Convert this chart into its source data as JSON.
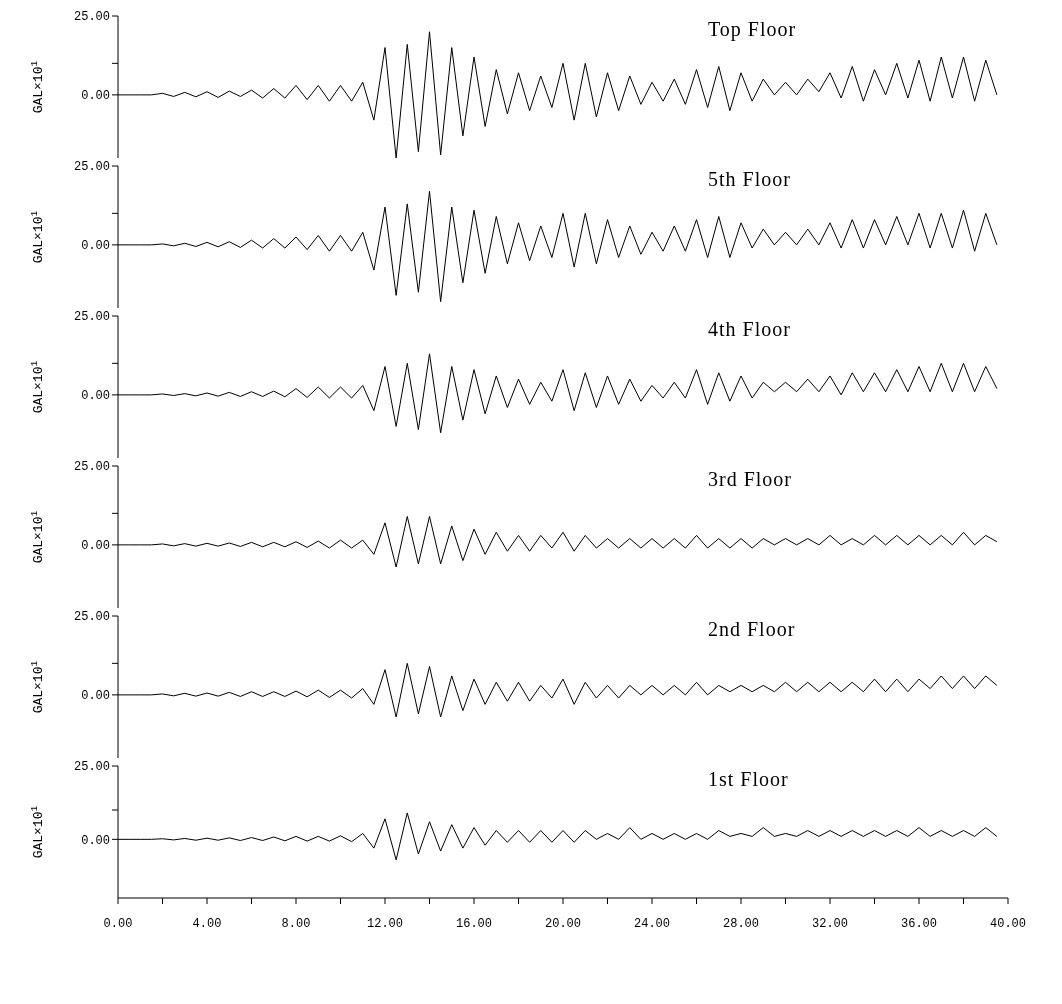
{
  "chart_data": [
    {
      "type": "line",
      "title": "Top Floor",
      "ylabel": "GAL×10$^{1}$",
      "color": "#000000",
      "marker": "none",
      "line_style": "solid",
      "tick_labels": "y",
      "xlim": [
        0,
        40
      ],
      "ylim": [
        -20,
        25
      ],
      "yticks": [
        {
          "value": 0,
          "label": "0.00"
        },
        {
          "value": 10,
          "label": null
        },
        {
          "value": 25,
          "label": "25.00"
        }
      ],
      "x": [
        0,
        0.5,
        1,
        1.5,
        2,
        2.5,
        3,
        3.5,
        4,
        4.5,
        5,
        5.5,
        6,
        6.5,
        7,
        7.5,
        8,
        8.5,
        9,
        9.5,
        10,
        10.5,
        11,
        11.5,
        12,
        12.5,
        13,
        13.5,
        14,
        14.5,
        15,
        15.5,
        16,
        16.5,
        17,
        17.5,
        18,
        18.5,
        19,
        19.5,
        20,
        20.5,
        21,
        21.5,
        22,
        22.5,
        23,
        23.5,
        24,
        24.5,
        25,
        25.5,
        26,
        26.5,
        27,
        27.5,
        28,
        28.5,
        29,
        29.5,
        30,
        30.5,
        31,
        31.5,
        32,
        32.5,
        33,
        33.5,
        34,
        34.5,
        35,
        35.5,
        36,
        36.5,
        37,
        37.5,
        38,
        38.5,
        39,
        39.5
      ],
      "values": [
        0,
        0,
        0,
        0,
        0.5,
        -0.5,
        0.8,
        -0.6,
        1,
        -0.8,
        1.2,
        -0.5,
        1.5,
        -1,
        2,
        -1,
        3,
        -1.5,
        3,
        -2,
        3,
        -2,
        4,
        -8,
        15,
        -20,
        16,
        -18,
        20,
        -19,
        15,
        -13,
        12,
        -10,
        8,
        -6,
        7,
        -5,
        6,
        -4,
        10,
        -8,
        10,
        -7,
        7,
        -5,
        6,
        -3,
        4,
        -2,
        5,
        -3,
        8,
        -4,
        9,
        -5,
        7,
        -2,
        5,
        0,
        4,
        0,
        5,
        1,
        7,
        -1,
        9,
        -2,
        8,
        0,
        10,
        -1,
        11,
        -2,
        12,
        -1,
        12,
        -2,
        11,
        0
      ]
    },
    {
      "type": "line",
      "title": "5th Floor",
      "ylabel": "GAL×10$^{1}$",
      "color": "#000000",
      "marker": "none",
      "line_style": "solid",
      "tick_labels": "y",
      "xlim": [
        0,
        40
      ],
      "ylim": [
        -20,
        25
      ],
      "yticks": [
        {
          "value": 0,
          "label": "0.00"
        },
        {
          "value": 10,
          "label": null
        },
        {
          "value": 25,
          "label": "25.00"
        }
      ],
      "x": [
        0,
        0.5,
        1,
        1.5,
        2,
        2.5,
        3,
        3.5,
        4,
        4.5,
        5,
        5.5,
        6,
        6.5,
        7,
        7.5,
        8,
        8.5,
        9,
        9.5,
        10,
        10.5,
        11,
        11.5,
        12,
        12.5,
        13,
        13.5,
        14,
        14.5,
        15,
        15.5,
        16,
        16.5,
        17,
        17.5,
        18,
        18.5,
        19,
        19.5,
        20,
        20.5,
        21,
        21.5,
        22,
        22.5,
        23,
        23.5,
        24,
        24.5,
        25,
        25.5,
        26,
        26.5,
        27,
        27.5,
        28,
        28.5,
        29,
        29.5,
        30,
        30.5,
        31,
        31.5,
        32,
        32.5,
        33,
        33.5,
        34,
        34.5,
        35,
        35.5,
        36,
        36.5,
        37,
        37.5,
        38,
        38.5,
        39,
        39.5
      ],
      "values": [
        0,
        0,
        0,
        0,
        0.3,
        -0.3,
        0.5,
        -0.5,
        0.8,
        -0.6,
        1,
        -0.8,
        1.5,
        -1,
        2,
        -1,
        2.5,
        -1.5,
        3,
        -2,
        3,
        -2,
        4,
        -8,
        12,
        -16,
        13,
        -15,
        17,
        -18,
        12,
        -12,
        11,
        -9,
        9,
        -6,
        7,
        -5,
        6,
        -4,
        10,
        -7,
        10,
        -6,
        8,
        -4,
        6,
        -3,
        4,
        -2,
        6,
        -2,
        8,
        -4,
        9,
        -4,
        7,
        -1,
        5,
        0,
        4,
        0,
        5,
        0,
        7,
        -1,
        8,
        -1,
        8,
        0,
        9,
        0,
        10,
        -1,
        10,
        -1,
        11,
        -2,
        10,
        0
      ]
    },
    {
      "type": "line",
      "title": "4th Floor",
      "ylabel": "GAL×10$^{1}$",
      "color": "#000000",
      "marker": "none",
      "line_style": "solid",
      "tick_labels": "y",
      "xlim": [
        0,
        40
      ],
      "ylim": [
        -20,
        25
      ],
      "yticks": [
        {
          "value": 0,
          "label": "0.00"
        },
        {
          "value": 10,
          "label": null
        },
        {
          "value": 25,
          "label": "25.00"
        }
      ],
      "x": [
        0,
        0.5,
        1,
        1.5,
        2,
        2.5,
        3,
        3.5,
        4,
        4.5,
        5,
        5.5,
        6,
        6.5,
        7,
        7.5,
        8,
        8.5,
        9,
        9.5,
        10,
        10.5,
        11,
        11.5,
        12,
        12.5,
        13,
        13.5,
        14,
        14.5,
        15,
        15.5,
        16,
        16.5,
        17,
        17.5,
        18,
        18.5,
        19,
        19.5,
        20,
        20.5,
        21,
        21.5,
        22,
        22.5,
        23,
        23.5,
        24,
        24.5,
        25,
        25.5,
        26,
        26.5,
        27,
        27.5,
        28,
        28.5,
        29,
        29.5,
        30,
        30.5,
        31,
        31.5,
        32,
        32.5,
        33,
        33.5,
        34,
        34.5,
        35,
        35.5,
        36,
        36.5,
        37,
        37.5,
        38,
        38.5,
        39,
        39.5
      ],
      "values": [
        0,
        0,
        0,
        0,
        0.3,
        -0.2,
        0.4,
        -0.3,
        0.6,
        -0.4,
        0.8,
        -0.5,
        1,
        -0.5,
        1.2,
        -0.6,
        2,
        -0.8,
        2.5,
        -1,
        2.5,
        -1,
        3,
        -5,
        9,
        -10,
        10,
        -11,
        13,
        -12,
        9,
        -8,
        8,
        -6,
        6,
        -4,
        5,
        -3,
        4,
        -2,
        8,
        -5,
        7,
        -4,
        6,
        -3,
        5,
        -2,
        3,
        -1,
        4,
        -1,
        8,
        -3,
        7,
        -2,
        6,
        -1,
        4,
        1,
        4,
        1,
        5,
        1,
        6,
        0,
        7,
        1,
        7,
        1,
        8,
        1,
        9,
        1,
        10,
        1,
        10,
        1,
        9,
        2
      ]
    },
    {
      "type": "line",
      "title": "3rd Floor",
      "ylabel": "GAL×10$^{1}$",
      "color": "#000000",
      "marker": "none",
      "line_style": "solid",
      "tick_labels": "y",
      "xlim": [
        0,
        40
      ],
      "ylim": [
        -20,
        25
      ],
      "yticks": [
        {
          "value": 0,
          "label": "0.00"
        },
        {
          "value": 10,
          "label": null
        },
        {
          "value": 25,
          "label": "25.00"
        }
      ],
      "x": [
        0,
        0.5,
        1,
        1.5,
        2,
        2.5,
        3,
        3.5,
        4,
        4.5,
        5,
        5.5,
        6,
        6.5,
        7,
        7.5,
        8,
        8.5,
        9,
        9.5,
        10,
        10.5,
        11,
        11.5,
        12,
        12.5,
        13,
        13.5,
        14,
        14.5,
        15,
        15.5,
        16,
        16.5,
        17,
        17.5,
        18,
        18.5,
        19,
        19.5,
        20,
        20.5,
        21,
        21.5,
        22,
        22.5,
        23,
        23.5,
        24,
        24.5,
        25,
        25.5,
        26,
        26.5,
        27,
        27.5,
        28,
        28.5,
        29,
        29.5,
        30,
        30.5,
        31,
        31.5,
        32,
        32.5,
        33,
        33.5,
        34,
        34.5,
        35,
        35.5,
        36,
        36.5,
        37,
        37.5,
        38,
        38.5,
        39,
        39.5
      ],
      "values": [
        0,
        0,
        0,
        0,
        0.3,
        -0.3,
        0.4,
        -0.4,
        0.5,
        -0.4,
        0.6,
        -0.5,
        0.8,
        -0.6,
        0.8,
        -0.6,
        1,
        -0.8,
        1.2,
        -1,
        1.5,
        -1,
        1.5,
        -3,
        7,
        -7,
        9,
        -6,
        9,
        -6,
        6,
        -5,
        5,
        -3,
        4,
        -2,
        3,
        -2,
        3,
        -1,
        4,
        -2,
        3,
        -1,
        2,
        -1,
        2,
        -1,
        2,
        -1,
        2,
        -1,
        3,
        -1,
        2,
        -1,
        2,
        -1,
        2,
        0,
        2,
        0,
        2,
        0,
        3,
        0,
        2,
        0,
        3,
        0,
        3,
        0,
        3,
        0,
        3,
        0,
        4,
        0,
        3,
        1
      ]
    },
    {
      "type": "line",
      "title": "2nd Floor",
      "ylabel": "GAL×10$^{1}$",
      "color": "#000000",
      "marker": "none",
      "line_style": "solid",
      "tick_labels": "y",
      "xlim": [
        0,
        40
      ],
      "ylim": [
        -20,
        25
      ],
      "yticks": [
        {
          "value": 0,
          "label": "0.00"
        },
        {
          "value": 10,
          "label": null
        },
        {
          "value": 25,
          "label": "25.00"
        }
      ],
      "x": [
        0,
        0.5,
        1,
        1.5,
        2,
        2.5,
        3,
        3.5,
        4,
        4.5,
        5,
        5.5,
        6,
        6.5,
        7,
        7.5,
        8,
        8.5,
        9,
        9.5,
        10,
        10.5,
        11,
        11.5,
        12,
        12.5,
        13,
        13.5,
        14,
        14.5,
        15,
        15.5,
        16,
        16.5,
        17,
        17.5,
        18,
        18.5,
        19,
        19.5,
        20,
        20.5,
        21,
        21.5,
        22,
        22.5,
        23,
        23.5,
        24,
        24.5,
        25,
        25.5,
        26,
        26.5,
        27,
        27.5,
        28,
        28.5,
        29,
        29.5,
        30,
        30.5,
        31,
        31.5,
        32,
        32.5,
        33,
        33.5,
        34,
        34.5,
        35,
        35.5,
        36,
        36.5,
        37,
        37.5,
        38,
        38.5,
        39,
        39.5
      ],
      "values": [
        0,
        0,
        0,
        0,
        0.3,
        -0.3,
        0.5,
        -0.4,
        0.6,
        -0.4,
        0.8,
        -0.5,
        1,
        -0.5,
        1,
        -0.5,
        1.2,
        -0.6,
        1.5,
        -0.8,
        1.5,
        -1,
        2,
        -3,
        8,
        -7,
        10,
        -6,
        9,
        -7,
        6,
        -5,
        5,
        -3,
        4,
        -2,
        4,
        -2,
        3,
        -1,
        5,
        -3,
        4,
        -1,
        3,
        -1,
        3,
        0,
        3,
        0,
        3,
        0,
        4,
        0,
        3,
        1,
        3,
        1,
        3,
        1,
        4,
        1,
        4,
        1,
        4,
        1,
        4,
        1,
        5,
        1,
        5,
        1,
        5,
        2,
        6,
        2,
        6,
        2,
        6,
        3
      ]
    },
    {
      "type": "line",
      "title": "1st Floor",
      "ylabel": "GAL×10$^{1}$",
      "color": "#000000",
      "marker": "none",
      "line_style": "solid",
      "xlim": [
        0,
        40
      ],
      "ylim": [
        -20,
        25
      ],
      "yticks": [
        {
          "value": 0,
          "label": "0.00"
        },
        {
          "value": 10,
          "label": null
        },
        {
          "value": 25,
          "label": "25.00"
        }
      ],
      "xticks": [
        {
          "value": 0,
          "label": "0.00"
        },
        {
          "value": 2,
          "label": null
        },
        {
          "value": 4,
          "label": "4.00"
        },
        {
          "value": 6,
          "label": null
        },
        {
          "value": 8,
          "label": "8.00"
        },
        {
          "value": 10,
          "label": null
        },
        {
          "value": 12,
          "label": "12.00"
        },
        {
          "value": 14,
          "label": null
        },
        {
          "value": 16,
          "label": "16.00"
        },
        {
          "value": 18,
          "label": null
        },
        {
          "value": 20,
          "label": "20.00"
        },
        {
          "value": 22,
          "label": null
        },
        {
          "value": 24,
          "label": "24.00"
        },
        {
          "value": 26,
          "label": null
        },
        {
          "value": 28,
          "label": "28.00"
        },
        {
          "value": 30,
          "label": null
        },
        {
          "value": 32,
          "label": "32.00"
        },
        {
          "value": 34,
          "label": null
        },
        {
          "value": 36,
          "label": "36.00"
        },
        {
          "value": 38,
          "label": null
        },
        {
          "value": 40,
          "label": "40.00"
        }
      ],
      "x": [
        0,
        0.5,
        1,
        1.5,
        2,
        2.5,
        3,
        3.5,
        4,
        4.5,
        5,
        5.5,
        6,
        6.5,
        7,
        7.5,
        8,
        8.5,
        9,
        9.5,
        10,
        10.5,
        11,
        11.5,
        12,
        12.5,
        13,
        13.5,
        14,
        14.5,
        15,
        15.5,
        16,
        16.5,
        17,
        17.5,
        18,
        18.5,
        19,
        19.5,
        20,
        20.5,
        21,
        21.5,
        22,
        22.5,
        23,
        23.5,
        24,
        24.5,
        25,
        25.5,
        26,
        26.5,
        27,
        27.5,
        28,
        28.5,
        29,
        29.5,
        30,
        30.5,
        31,
        31.5,
        32,
        32.5,
        33,
        33.5,
        34,
        34.5,
        35,
        35.5,
        36,
        36.5,
        37,
        37.5,
        38,
        38.5,
        39,
        39.5
      ],
      "values": [
        0,
        0,
        0,
        0,
        0.2,
        -0.2,
        0.3,
        -0.3,
        0.4,
        -0.3,
        0.5,
        -0.4,
        0.6,
        -0.4,
        0.8,
        -0.5,
        1,
        -0.6,
        1,
        -0.6,
        1.2,
        -0.8,
        2,
        -3,
        7,
        -7,
        9,
        -5,
        6,
        -4,
        5,
        -3,
        4,
        -2,
        3,
        -1,
        3,
        -1,
        3,
        -1,
        3,
        -1,
        3,
        0,
        2,
        0,
        4,
        0,
        2,
        0,
        2,
        0,
        2,
        0,
        3,
        1,
        2,
        1,
        4,
        1,
        2,
        1,
        3,
        1,
        3,
        1,
        3,
        1,
        3,
        1,
        3,
        1,
        4,
        1,
        3,
        1,
        3,
        1,
        4,
        1
      ]
    }
  ]
}
